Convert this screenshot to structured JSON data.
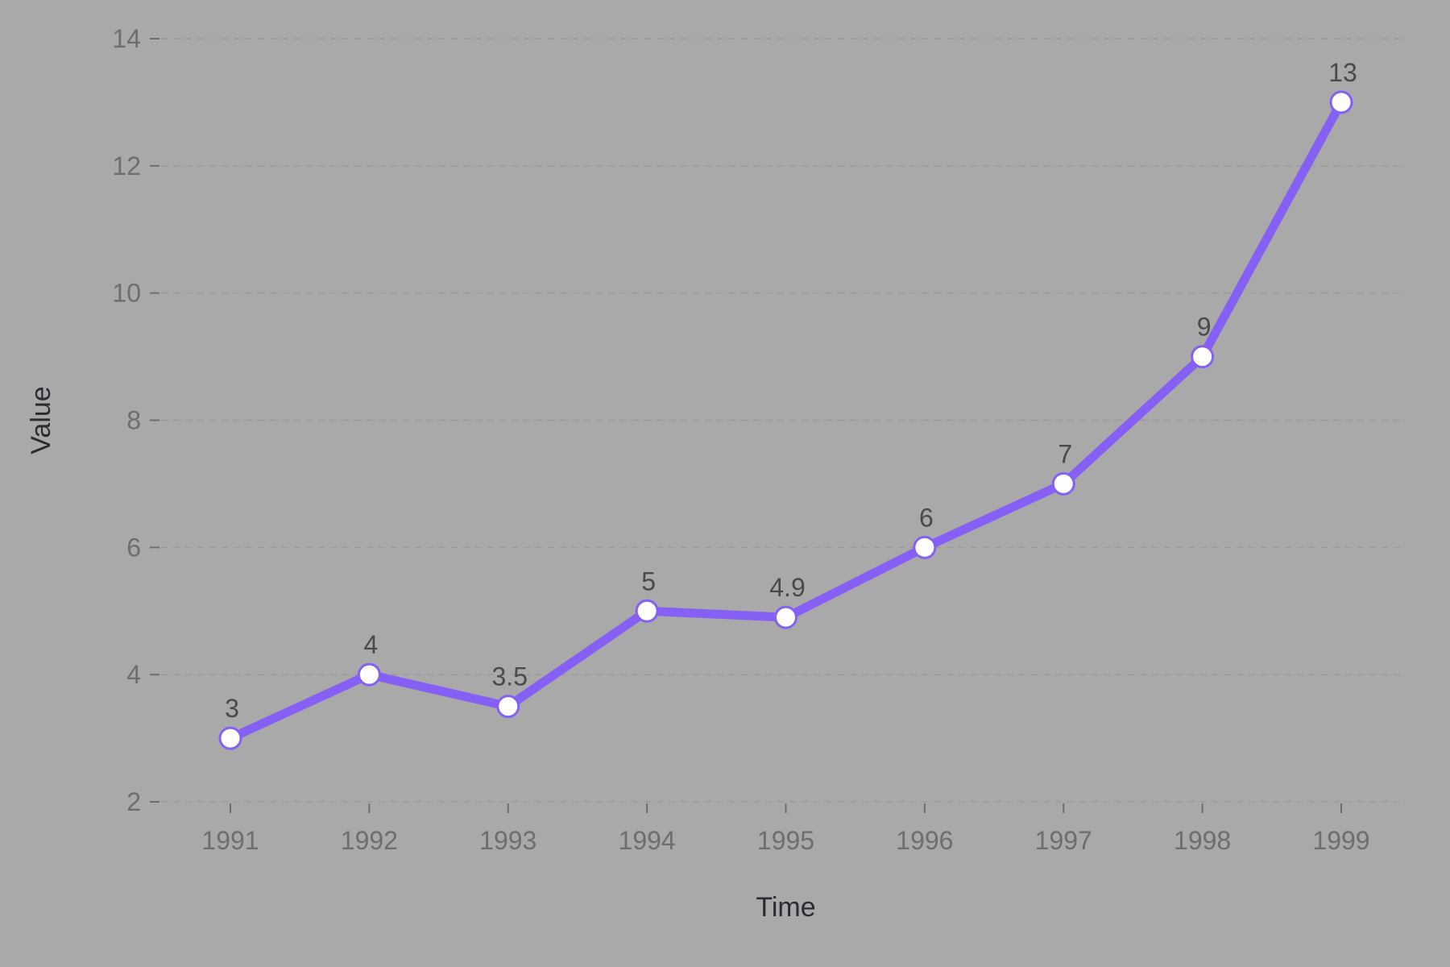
{
  "colors": {
    "background": "#a9a9a9",
    "line": "#8660f5",
    "marker_fill": "#ffffff",
    "marker_stroke": "#8660f5",
    "grid": "#9a9a9a"
  },
  "chart_data": {
    "type": "line",
    "title": "",
    "xlabel": "Time",
    "ylabel": "Value",
    "categories": [
      "1991",
      "1992",
      "1993",
      "1994",
      "1995",
      "1996",
      "1997",
      "1998",
      "1999"
    ],
    "series": [
      {
        "values": [
          3,
          4,
          3.5,
          5,
          4.9,
          6,
          7,
          9,
          13
        ],
        "data_labels": [
          "3",
          "4",
          "3.5",
          "5",
          "4.9",
          "6",
          "7",
          "9",
          "13"
        ]
      }
    ],
    "ylim": [
      2,
      14
    ],
    "yticks": [
      2,
      4,
      6,
      8,
      10,
      12,
      14
    ],
    "grid": "horizontal dashed",
    "legend": "none"
  }
}
